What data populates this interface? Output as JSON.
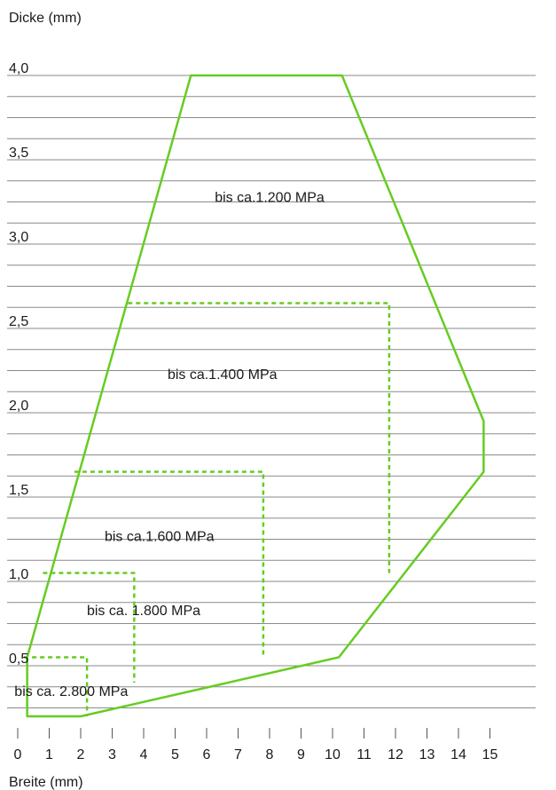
{
  "chart_data": {
    "type": "area",
    "ylabel": "Dicke (mm)",
    "xlabel": "Breite (mm)",
    "xlim": [
      0,
      15
    ],
    "ylim": [
      0,
      4
    ],
    "x_ticks": [
      "0",
      "1",
      "2",
      "3",
      "4",
      "5",
      "6",
      "7",
      "8",
      "9",
      "10",
      "11",
      "12",
      "13",
      "14",
      "15"
    ],
    "y_ticks": [
      "0,5",
      "1,0",
      "1,5",
      "2,0",
      "2,5",
      "3,0",
      "3,5",
      "4,0"
    ],
    "line_color": "#66cc22",
    "regions": [
      {
        "label": "bis ca.1.200 MPa",
        "style": "solid",
        "points": [
          [
            0.3,
            0.55
          ],
          [
            5.5,
            4.0
          ],
          [
            10.3,
            4.0
          ],
          [
            14.8,
            1.95
          ],
          [
            14.8,
            1.65
          ],
          [
            10.2,
            0.55
          ],
          [
            2.0,
            0.2
          ],
          [
            0.3,
            0.2
          ],
          [
            0.3,
            0.55
          ]
        ],
        "label_pos": [
          8.0,
          3.25
        ]
      },
      {
        "label": "bis ca.1.400 MPa",
        "style": "dashed",
        "points": [
          [
            3.5,
            2.65
          ],
          [
            11.8,
            2.65
          ],
          [
            11.8,
            1.05
          ]
        ],
        "label_pos": [
          6.5,
          2.2
        ]
      },
      {
        "label": "bis ca.1.600 MPa",
        "style": "dashed",
        "points": [
          [
            1.8,
            1.65
          ],
          [
            7.8,
            1.65
          ],
          [
            7.8,
            0.55
          ]
        ],
        "label_pos": [
          4.5,
          1.24
        ]
      },
      {
        "label": "bis ca. 1.800 MPa",
        "style": "dashed",
        "points": [
          [
            0.8,
            1.05
          ],
          [
            3.7,
            1.05
          ],
          [
            3.7,
            0.4
          ]
        ],
        "label_pos": [
          4.0,
          0.8
        ]
      },
      {
        "label": "bis ca. 2.800 MPa",
        "style": "dashed",
        "points": [
          [
            0.2,
            0.55
          ],
          [
            2.2,
            0.55
          ],
          [
            2.2,
            0.2
          ]
        ],
        "label_pos": [
          1.7,
          0.32
        ]
      }
    ]
  }
}
